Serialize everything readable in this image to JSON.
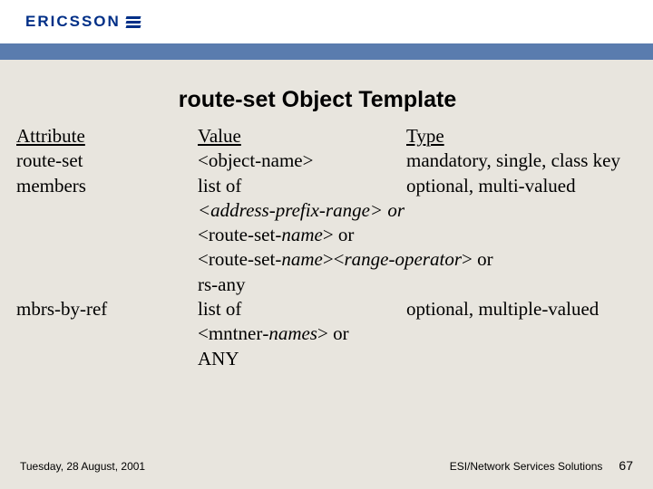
{
  "brand": {
    "name": "ERICSSON"
  },
  "title": "route-set Object Template",
  "headers": {
    "attribute": "Attribute",
    "value": "Value",
    "type": "Type"
  },
  "rows": {
    "r1": {
      "attr": "route-set",
      "val": "<object-name>",
      "type": "mandatory, single, class key"
    },
    "r2": {
      "attr": "members",
      "val": "list of",
      "type": "optional, multi-valued"
    },
    "r3": {
      "span": "<address-prefix-range> or"
    },
    "r4": {
      "span": "<route-set-name> or"
    },
    "r5": {
      "span": "<route-set-name><range-operator> or"
    },
    "r6": {
      "span": "rs-any"
    },
    "r7": {
      "attr": "mbrs-by-ref",
      "val": "list of",
      "type": "optional, multiple-valued"
    },
    "r8": {
      "span": "<mntner-names> or"
    },
    "r9": {
      "span": " ANY"
    }
  },
  "footer": {
    "date": "Tuesday, 28 August, 2001",
    "org": "ESI/Network Services Solutions",
    "page": "67"
  },
  "colors": {
    "bg": "#e8e5de",
    "brand_blue": "#002f87",
    "bar_blue": "#5a7cae"
  }
}
